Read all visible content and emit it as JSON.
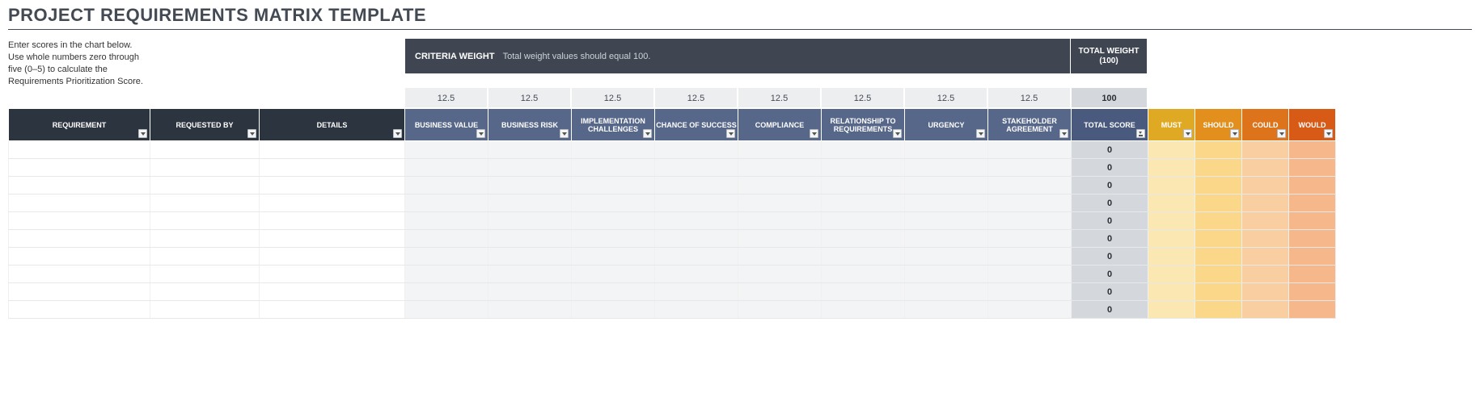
{
  "title": "PROJECT REQUIREMENTS MATRIX TEMPLATE",
  "instructions": {
    "line1": "Enter scores in the chart below.",
    "line2": "Use whole numbers zero through",
    "line3": "five (0–5) to calculate the",
    "line4": "Requirements Prioritization Score."
  },
  "criteria_bar": {
    "label": "CRITERIA WEIGHT",
    "sub": "Total weight values should equal 100."
  },
  "total_weight_label": "TOTAL WEIGHT (100)",
  "weights": [
    "12.5",
    "12.5",
    "12.5",
    "12.5",
    "12.5",
    "12.5",
    "12.5",
    "12.5"
  ],
  "weights_total": "100",
  "columns": {
    "req_cols": [
      "REQUIREMENT",
      "REQUESTED BY",
      "DETAILS"
    ],
    "criteria_cols": [
      "BUSINESS VALUE",
      "BUSINESS RISK",
      "IMPLEMENTATION CHALLENGES",
      "CHANCE OF SUCCESS",
      "COMPLIANCE",
      "RELATIONSHIP TO REQUIREMENTS",
      "URGENCY",
      "STAKEHOLDER AGREEMENT"
    ],
    "total_col": "TOTAL SCORE",
    "priority_cols": [
      "MUST",
      "SHOULD",
      "COULD",
      "WOULD"
    ]
  },
  "col_widths": {
    "requirement": 175,
    "requested_by": 135,
    "details": 180,
    "criteria": 103,
    "total": 95,
    "priority": 58
  },
  "row_count": 10,
  "row_score_default": "0",
  "colors": {
    "title": "#444a54",
    "dark_header": "#2c3440",
    "blue_header": "#57678a",
    "criteria_bar": "#3f4652",
    "weights_bg": "#eceef0",
    "weights_total_bg": "#d4d8dc",
    "score_bg": "#d4d8dc",
    "must_hdr": "#e0a924",
    "should_hdr": "#e28f1e",
    "could_hdr": "#dd741c",
    "would_hdr": "#d85a17",
    "must_cell": "#fbe7b1",
    "should_cell": "#fbd889",
    "could_cell": "#f9cfa1",
    "would_cell": "#f6b88a",
    "alt_cell": "#f3f4f6"
  }
}
